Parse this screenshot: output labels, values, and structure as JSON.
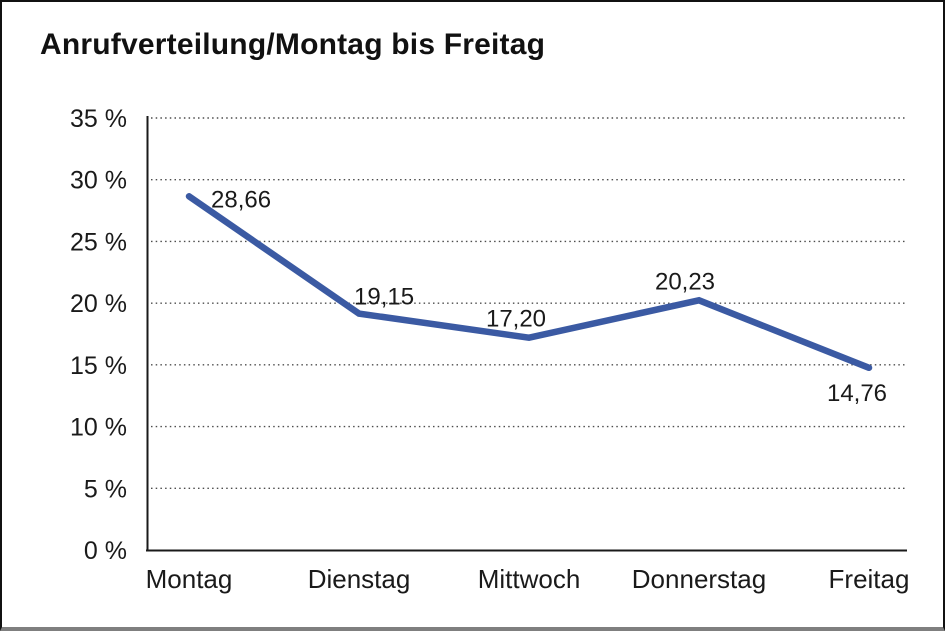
{
  "window": {
    "background": "#ffffff",
    "border_color": "#111111",
    "bottom_bar_color": "#7f7f7f"
  },
  "header": {
    "title": "Anrufverteilung/Montag bis Freitag"
  },
  "chart_data": {
    "type": "line",
    "title": "Anrufverteilung/Montag bis Freitag",
    "categories": [
      "Montag",
      "Dienstag",
      "Mittwoch",
      "Donnerstag",
      "Freitag"
    ],
    "values": [
      28.66,
      19.15,
      17.2,
      20.23,
      14.76
    ],
    "point_labels": [
      "28,66",
      "19,15",
      "17,20",
      "20,23",
      "14,76"
    ],
    "xlabel": "",
    "ylabel": "",
    "ylim": [
      0,
      35
    ],
    "ytick_step": 5,
    "ytick_labels": [
      "0 %",
      "5 %",
      "10 %",
      "15 %",
      "20 %",
      "25 %",
      "30 %",
      "35 %"
    ],
    "grid": "horizontal-dotted",
    "legend": "none",
    "line_color": "#3b5aa3",
    "axis_color": "#1a1a1a",
    "gridline_color": "#4d4d4d",
    "text_color": "#1a1a1a"
  }
}
